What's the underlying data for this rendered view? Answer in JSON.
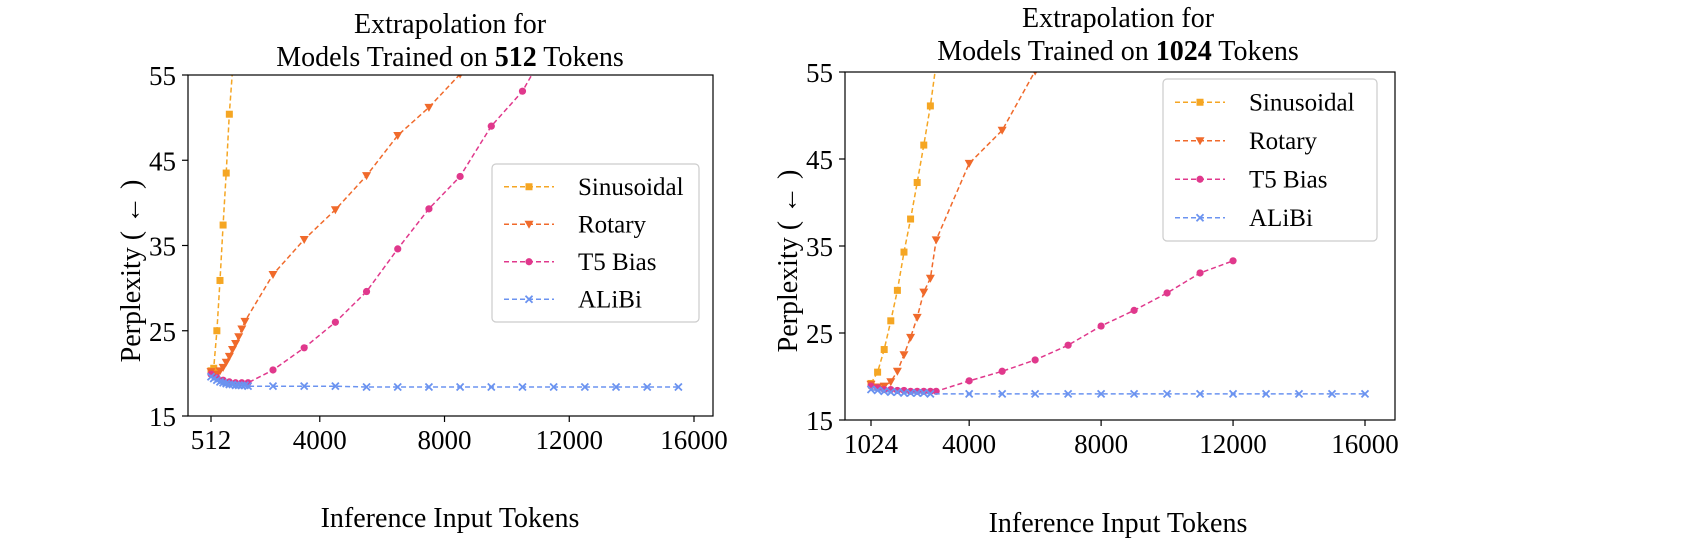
{
  "chart_data": [
    {
      "type": "line",
      "title_line1": "Extrapolation for",
      "title_line2_pre": "Models Trained on ",
      "title_line2_bold": "512",
      "title_line2_post": " Tokens",
      "xlabel": "Inference Input Tokens",
      "ylabel": "Perplexity ( ← )",
      "xlim": [
        0,
        16000
      ],
      "ylim": [
        15,
        55
      ],
      "xticks": [
        512,
        4000,
        8000,
        12000,
        16000
      ],
      "xtick_labels": [
        "512",
        "4000",
        "8000",
        "12000",
        "16000"
      ],
      "yticks": [
        15,
        25,
        35,
        45,
        55
      ],
      "ytick_labels": [
        "15",
        "25",
        "35",
        "45",
        "55"
      ],
      "legend_position": "center-right",
      "series": [
        {
          "name": "Sinusoidal",
          "color": "#f5a623",
          "marker": "square",
          "points": [
            [
              512,
              20.3
            ],
            [
              600,
              20.6
            ],
            [
              700,
              25
            ],
            [
              800,
              30.9
            ],
            [
              900,
              37.4
            ],
            [
              1000,
              43.5
            ],
            [
              1100,
              50.4
            ],
            [
              1220,
              56.5
            ]
          ]
        },
        {
          "name": "Rotary",
          "color": "#f06a2b",
          "marker": "triangle-down",
          "points": [
            [
              512,
              20.2
            ],
            [
              600,
              19.8
            ],
            [
              700,
              19.9
            ],
            [
              800,
              20.3
            ],
            [
              900,
              20.7
            ],
            [
              1000,
              21.3
            ],
            [
              1100,
              22
            ],
            [
              1200,
              22.8
            ],
            [
              1300,
              23.5
            ],
            [
              1400,
              24.3
            ],
            [
              1500,
              25.2
            ],
            [
              1600,
              26.1
            ],
            [
              2500,
              31.6
            ],
            [
              3500,
              35.7
            ],
            [
              4500,
              39.2
            ],
            [
              5500,
              43.2
            ],
            [
              6500,
              47.9
            ],
            [
              7500,
              51.2
            ],
            [
              8500,
              55.1
            ],
            [
              9000,
              57
            ]
          ]
        },
        {
          "name": "T5 Bias",
          "color": "#e0388c",
          "marker": "circle",
          "points": [
            [
              512,
              19.9
            ],
            [
              700,
              19.5
            ],
            [
              900,
              19.2
            ],
            [
              1100,
              19.0
            ],
            [
              1300,
              18.9
            ],
            [
              1500,
              18.9
            ],
            [
              1700,
              18.9
            ],
            [
              2500,
              20.4
            ],
            [
              3500,
              23
            ],
            [
              4500,
              26
            ],
            [
              5500,
              29.6
            ],
            [
              6500,
              34.6
            ],
            [
              7500,
              39.3
            ],
            [
              8500,
              43.1
            ],
            [
              9500,
              49
            ],
            [
              10500,
              53.1
            ],
            [
              10950,
              56
            ]
          ]
        },
        {
          "name": "ALiBi",
          "color": "#6b93f0",
          "marker": "x",
          "points": [
            [
              512,
              19.6
            ],
            [
              600,
              19.4
            ],
            [
              700,
              19.2
            ],
            [
              800,
              19.0
            ],
            [
              900,
              18.9
            ],
            [
              1000,
              18.8
            ],
            [
              1100,
              18.7
            ],
            [
              1200,
              18.7
            ],
            [
              1300,
              18.6
            ],
            [
              1400,
              18.6
            ],
            [
              1500,
              18.6
            ],
            [
              1600,
              18.6
            ],
            [
              1700,
              18.5
            ],
            [
              2500,
              18.5
            ],
            [
              3500,
              18.5
            ],
            [
              4500,
              18.5
            ],
            [
              5500,
              18.4
            ],
            [
              6500,
              18.4
            ],
            [
              7500,
              18.4
            ],
            [
              8500,
              18.4
            ],
            [
              9500,
              18.4
            ],
            [
              10500,
              18.4
            ],
            [
              11500,
              18.4
            ],
            [
              12500,
              18.4
            ],
            [
              13500,
              18.4
            ],
            [
              14500,
              18.4
            ],
            [
              15500,
              18.4
            ]
          ]
        }
      ]
    },
    {
      "type": "line",
      "title_line1": "Extrapolation for",
      "title_line2_pre": "Models Trained on ",
      "title_line2_bold": "1024",
      "title_line2_post": " Tokens",
      "xlabel": "Inference Input Tokens",
      "ylabel": "Perplexity ( ← )",
      "xlim": [
        0,
        16000
      ],
      "ylim": [
        15,
        55
      ],
      "xticks": [
        1024,
        4000,
        8000,
        12000,
        16000
      ],
      "xtick_labels": [
        "1024",
        "4000",
        "8000",
        "12000",
        "16000"
      ],
      "yticks": [
        15,
        25,
        35,
        45,
        55
      ],
      "ytick_labels": [
        "15",
        "25",
        "35",
        "45",
        "55"
      ],
      "legend_position": "top-right",
      "series": [
        {
          "name": "Sinusoidal",
          "color": "#f5a623",
          "marker": "square",
          "points": [
            [
              1024,
              19.2
            ],
            [
              1224,
              20.5
            ],
            [
              1424,
              23.1
            ],
            [
              1624,
              26.4
            ],
            [
              1824,
              29.9
            ],
            [
              2024,
              34.3
            ],
            [
              2224,
              38.1
            ],
            [
              2424,
              42.3
            ],
            [
              2624,
              46.6
            ],
            [
              2824,
              51.1
            ],
            [
              3000,
              56
            ]
          ]
        },
        {
          "name": "Rotary",
          "color": "#f06a2b",
          "marker": "triangle-down",
          "points": [
            [
              1024,
              19.1
            ],
            [
              1224,
              18.8
            ],
            [
              1424,
              18.9
            ],
            [
              1624,
              19.4
            ],
            [
              1824,
              20.6
            ],
            [
              2024,
              22.5
            ],
            [
              2224,
              24.5
            ],
            [
              2424,
              26.8
            ],
            [
              2624,
              29.7
            ],
            [
              2824,
              31.3
            ],
            [
              3000,
              35.7
            ],
            [
              4000,
              44.5
            ],
            [
              5000,
              48.3
            ],
            [
              6000,
              55.1
            ],
            [
              6200,
              57
            ]
          ]
        },
        {
          "name": "T5 Bias",
          "color": "#e0388c",
          "marker": "circle",
          "points": [
            [
              1024,
              18.9
            ],
            [
              1224,
              18.7
            ],
            [
              1424,
              18.5
            ],
            [
              1624,
              18.5
            ],
            [
              1824,
              18.4
            ],
            [
              2024,
              18.4
            ],
            [
              2224,
              18.3
            ],
            [
              2424,
              18.3
            ],
            [
              2624,
              18.3
            ],
            [
              2824,
              18.3
            ],
            [
              3000,
              18.3
            ],
            [
              4000,
              19.5
            ],
            [
              5000,
              20.6
            ],
            [
              6000,
              21.9
            ],
            [
              7000,
              23.6
            ],
            [
              8000,
              25.8
            ],
            [
              9000,
              27.6
            ],
            [
              10000,
              29.6
            ],
            [
              11000,
              31.9
            ],
            [
              12000,
              33.3
            ]
          ]
        },
        {
          "name": "ALiBi",
          "color": "#6b93f0",
          "marker": "x",
          "points": [
            [
              1024,
              18.5
            ],
            [
              1224,
              18.4
            ],
            [
              1424,
              18.3
            ],
            [
              1624,
              18.2
            ],
            [
              1824,
              18.2
            ],
            [
              2024,
              18.1
            ],
            [
              2224,
              18.1
            ],
            [
              2424,
              18.1
            ],
            [
              2624,
              18.1
            ],
            [
              2824,
              18.0
            ],
            [
              4000,
              18.0
            ],
            [
              5000,
              18.0
            ],
            [
              6000,
              18.0
            ],
            [
              7000,
              18.0
            ],
            [
              8000,
              18.0
            ],
            [
              9000,
              18.0
            ],
            [
              10000,
              18.0
            ],
            [
              11000,
              18.0
            ],
            [
              12000,
              18.0
            ],
            [
              13000,
              18.0
            ],
            [
              14000,
              18.0
            ],
            [
              15000,
              18.0
            ],
            [
              16000,
              18.0
            ]
          ]
        }
      ]
    }
  ]
}
